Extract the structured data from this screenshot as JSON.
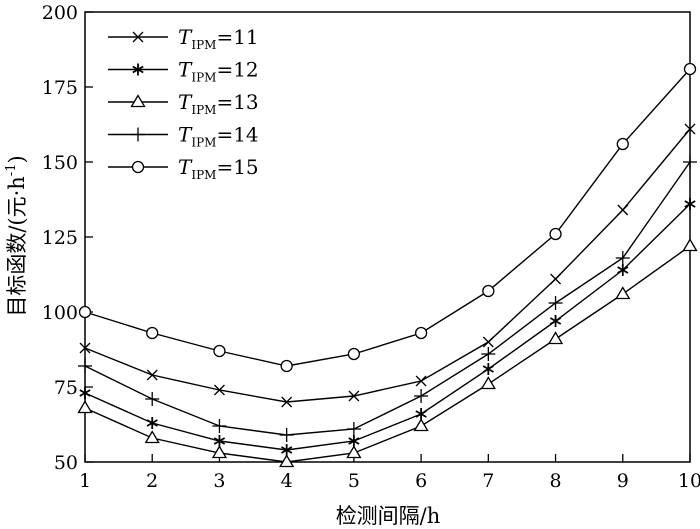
{
  "chart_data": {
    "type": "line",
    "xlabel": "检测间隔/h",
    "ylabel": "目标函数/(元·h",
    "ylabel_sup": "-1",
    "ylabel_close": ")",
    "xlim": [
      1,
      10
    ],
    "ylim": [
      50,
      200
    ],
    "x_ticks": [
      1,
      2,
      3,
      4,
      5,
      6,
      7,
      8,
      9,
      10
    ],
    "y_ticks": [
      50,
      75,
      100,
      125,
      150,
      175,
      200
    ],
    "x_tick_labels": [
      "1",
      "2",
      "3",
      "4",
      "5",
      "6",
      "7",
      "8",
      "9",
      "10"
    ],
    "y_tick_labels": [
      "50",
      "75",
      "100",
      "125",
      "150",
      "175",
      "200"
    ],
    "grid": false,
    "legend_position": "top-left",
    "x": [
      1,
      2,
      3,
      4,
      5,
      6,
      7,
      8,
      9,
      10
    ],
    "series": [
      {
        "name_main": "T",
        "name_sub": "IPM",
        "name_value": "=11",
        "marker": "x",
        "values": [
          88,
          79,
          74,
          70,
          72,
          77,
          90,
          111,
          134,
          161
        ]
      },
      {
        "name_main": "T",
        "name_sub": "IPM",
        "name_value": "=12",
        "marker": "star",
        "values": [
          73,
          63,
          57,
          54,
          57,
          66,
          81,
          97,
          114,
          136
        ]
      },
      {
        "name_main": "T",
        "name_sub": "IPM",
        "name_value": "=13",
        "marker": "triangle",
        "values": [
          68,
          58,
          53,
          50,
          53,
          62,
          76,
          91,
          106,
          122
        ]
      },
      {
        "name_main": "T",
        "name_sub": "IPM",
        "name_value": "=14",
        "marker": "plus",
        "values": [
          82,
          71,
          62,
          59,
          61,
          72,
          86,
          103,
          118,
          150
        ]
      },
      {
        "name_main": "T",
        "name_sub": "IPM",
        "name_value": "=15",
        "marker": "circle",
        "values": [
          100,
          93,
          87,
          82,
          86,
          93,
          107,
          126,
          156,
          181
        ]
      }
    ]
  }
}
